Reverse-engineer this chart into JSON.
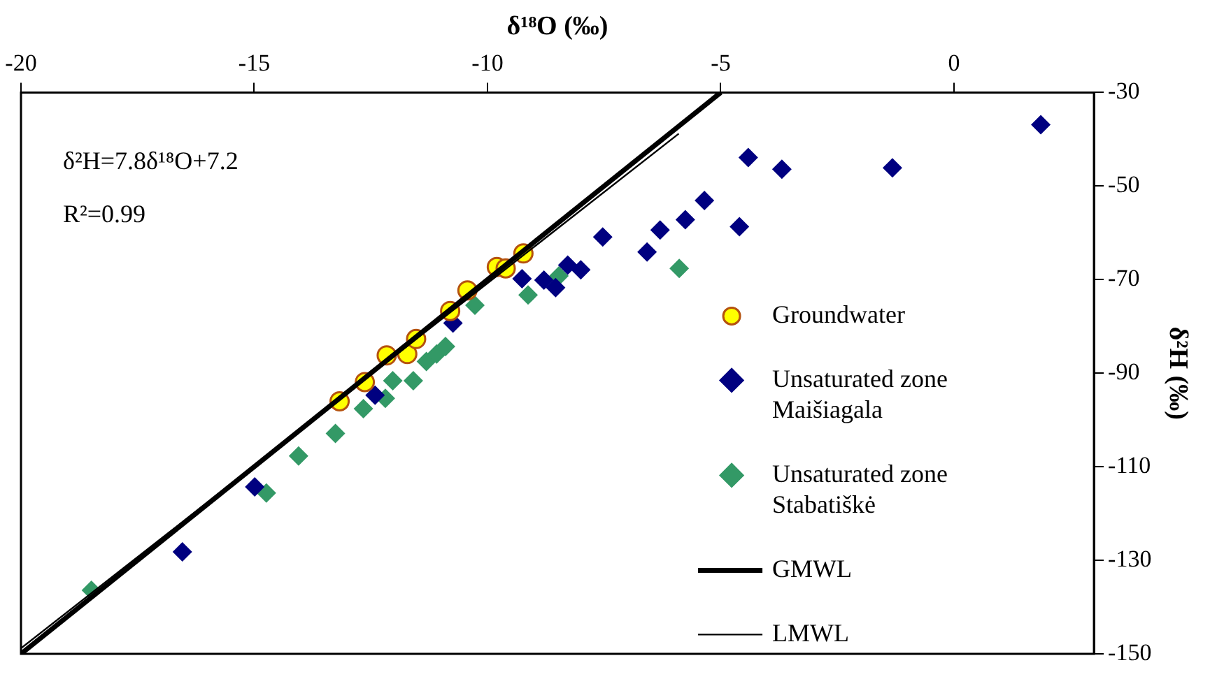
{
  "chart_data": {
    "type": "scatter",
    "xlabel": "δ¹⁸O (‰)",
    "ylabel": "δ²H (‰)",
    "xlim": [
      -20,
      3
    ],
    "xticks": [
      -20,
      -15,
      -10,
      -5,
      0
    ],
    "ylim": [
      -150,
      -30
    ],
    "yticks": [
      -30,
      -50,
      -70,
      -90,
      -110,
      -130,
      -150
    ],
    "grid": false,
    "legend": "right",
    "annotations": [
      "δ²H=7.8δ¹⁸O+7.2",
      "R²=0.99"
    ],
    "series": [
      {
        "name": "Groundwater",
        "color": "#ffff00",
        "marker": "circle",
        "x": [
          -13.17,
          -12.63,
          -12.16,
          -11.72,
          -11.53,
          -10.8,
          -10.43,
          -9.8,
          -9.61,
          -9.23
        ],
        "values": [
          -96.0,
          -91.9,
          -86.2,
          -85.9,
          -82.7,
          -76.7,
          -72.3,
          -67.3,
          -67.6,
          -64.4
        ]
      },
      {
        "name": "Unsaturated zone Maišiagala",
        "color": "#000080",
        "marker": "diamond",
        "x": [
          -16.54,
          -14.99,
          -12.41,
          -10.74,
          -9.26,
          -8.79,
          -8.54,
          -8.28,
          -8.0,
          -7.53,
          -6.58,
          -6.3,
          -5.76,
          -5.35,
          -4.6,
          -4.41,
          -3.69,
          -1.32,
          1.86
        ],
        "values": [
          -128.2,
          -114.3,
          -94.7,
          -79.3,
          -69.8,
          -70.1,
          -71.7,
          -66.9,
          -67.9,
          -60.9,
          -64.1,
          -59.4,
          -57.2,
          -53.1,
          -58.7,
          -43.9,
          -46.4,
          -46.1,
          -36.9
        ]
      },
      {
        "name": "Unsaturated zone Stabatiškė",
        "color": "#339966",
        "marker": "diamond",
        "x": [
          -18.49,
          -14.74,
          -14.05,
          -13.26,
          -12.66,
          -12.19,
          -12.03,
          -11.59,
          -11.31,
          -11.09,
          -10.9,
          -10.27,
          -9.13,
          -8.47,
          -5.89
        ],
        "values": [
          -136.4,
          -115.6,
          -107.7,
          -102.9,
          -97.6,
          -95.4,
          -91.6,
          -91.6,
          -87.5,
          -85.9,
          -84.3,
          -75.5,
          -73.3,
          -69.2,
          -67.6
        ]
      },
      {
        "name": "GMWL",
        "type": "line",
        "color": "#000000",
        "marker": "none",
        "line_style": "solid",
        "x": [
          -20,
          -5
        ],
        "values": [
          -150,
          -30
        ]
      },
      {
        "name": "LMWL",
        "type": "line",
        "color": "#000000",
        "marker": "none",
        "line_style": "solid",
        "x": [
          -20,
          -5.9
        ],
        "values": [
          -148.8,
          -38.8
        ]
      }
    ]
  }
}
